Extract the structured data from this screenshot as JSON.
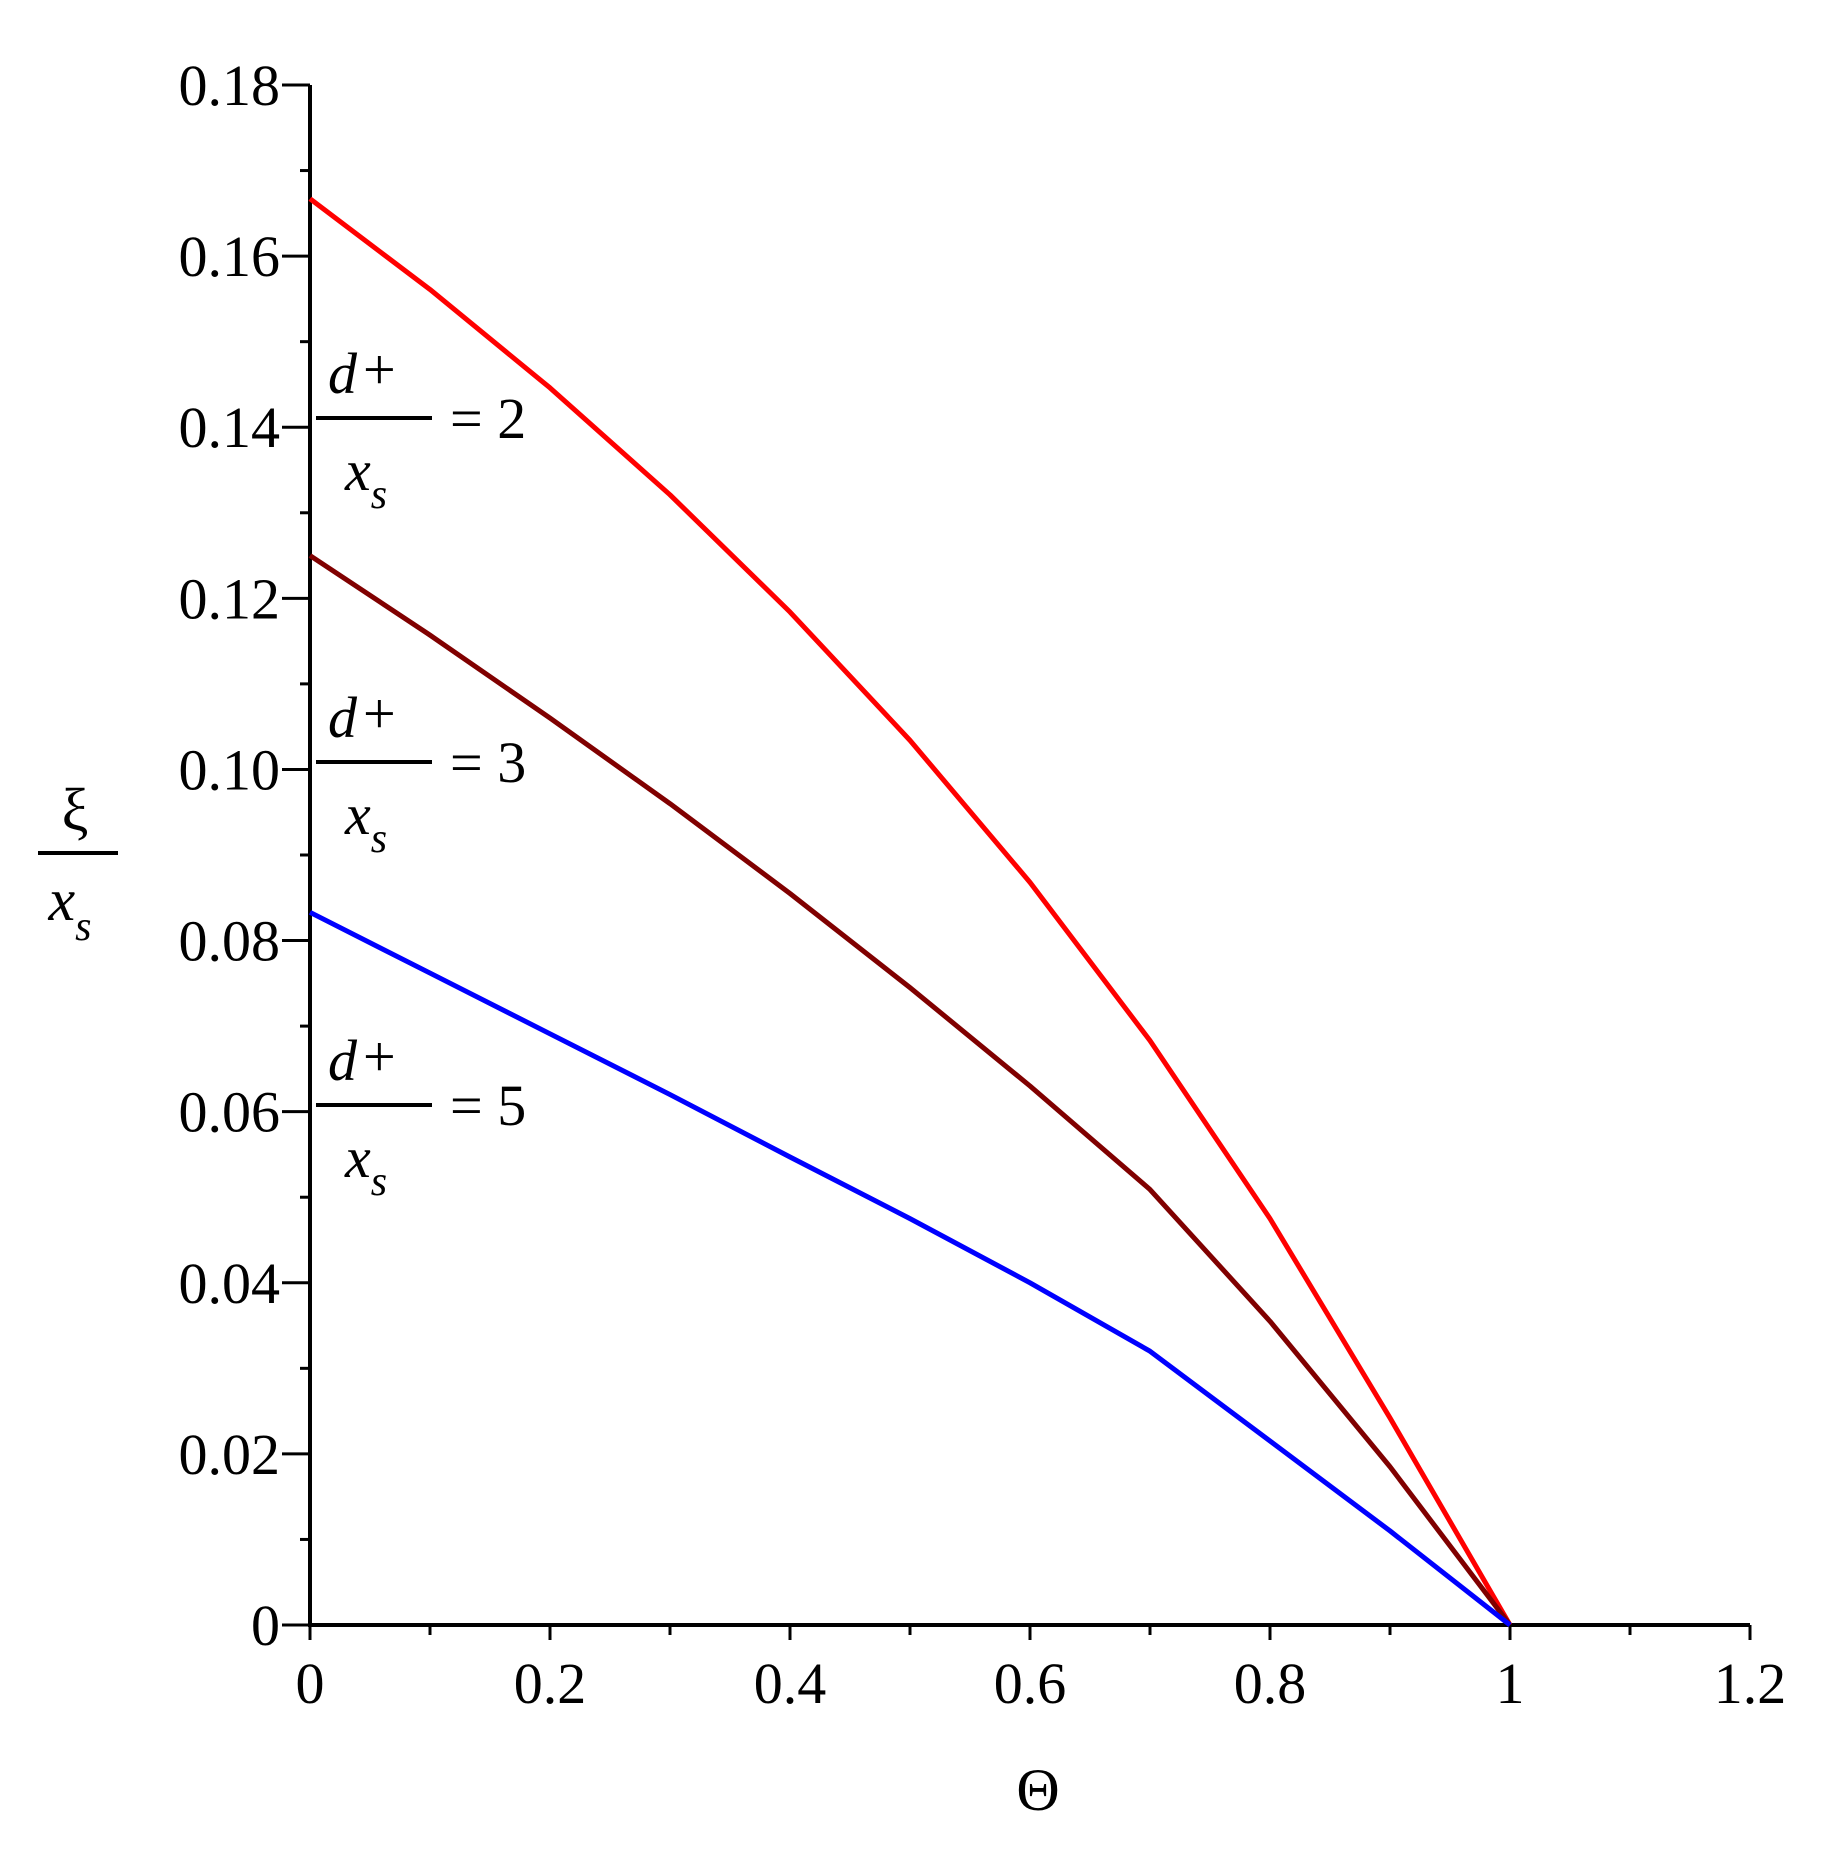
{
  "chart_data": {
    "type": "line",
    "title": "",
    "xlabel": "Θ",
    "ylabel": {
      "numerator": "ξ",
      "denominator": "x",
      "denominator_subscript": "s"
    },
    "xlim": [
      0,
      1.2
    ],
    "ylim": [
      0,
      0.18
    ],
    "x_ticks": [
      "0",
      "0.2",
      "0.4",
      "0.6",
      "0.8",
      "1",
      "1.2"
    ],
    "x_tick_values": [
      0,
      0.2,
      0.4,
      0.6,
      0.8,
      1,
      1.2
    ],
    "y_ticks": [
      "0",
      "0.02",
      "0.04",
      "0.06",
      "0.08",
      "0.10",
      "0.12",
      "0.14",
      "0.16",
      "0.18"
    ],
    "y_tick_values": [
      0,
      0.02,
      0.04,
      0.06,
      0.08,
      0.1,
      0.12,
      0.14,
      0.16,
      0.18
    ],
    "grid": false,
    "legend": "none",
    "series": [
      {
        "label": {
          "numerator": "d",
          "numerator_sup": "+",
          "denominator": "x",
          "denominator_sub": "s",
          "value": "= 2"
        },
        "color": "#ff0000",
        "x": [
          0,
          0.1,
          0.2,
          0.3,
          0.4,
          0.5,
          0.6,
          0.7,
          0.8,
          0.9,
          1.0
        ],
        "y": [
          0.1667,
          0.1561,
          0.1446,
          0.1321,
          0.1184,
          0.1034,
          0.0868,
          0.0683,
          0.0475,
          0.0242,
          0.0
        ]
      },
      {
        "label": {
          "numerator": "d",
          "numerator_sup": "+",
          "denominator": "x",
          "denominator_sub": "s",
          "value": "= 3"
        },
        "color": "#800000",
        "x": [
          0,
          0.1,
          0.2,
          0.3,
          0.4,
          0.5,
          0.6,
          0.7,
          0.8,
          0.9,
          1.0
        ],
        "y": [
          0.125,
          0.1157,
          0.106,
          0.096,
          0.0855,
          0.0745,
          0.063,
          0.0509,
          0.0355,
          0.0185,
          0.0
        ]
      },
      {
        "label": {
          "numerator": "d",
          "numerator_sup": "+",
          "denominator": "x",
          "denominator_sub": "s",
          "value": "= 5"
        },
        "color": "#0000ff",
        "x": [
          0,
          0.1,
          0.2,
          0.3,
          0.4,
          0.5,
          0.6,
          0.7,
          0.8,
          0.9,
          1.0
        ],
        "y": [
          0.0833,
          0.0762,
          0.0691,
          0.062,
          0.0547,
          0.0475,
          0.04,
          0.032,
          0.0215,
          0.011,
          0.0
        ]
      }
    ]
  }
}
